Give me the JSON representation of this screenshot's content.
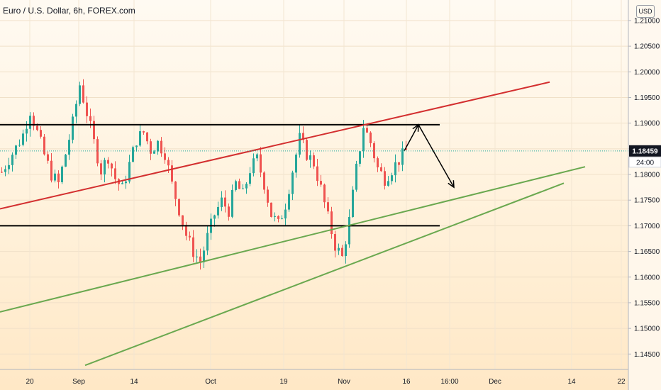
{
  "header": {
    "title": "Euro / U.S. Dollar, 6h, FOREX.com",
    "currency": "USD"
  },
  "colors": {
    "up": "#26a69a",
    "down": "#ef5350",
    "resistance_trend": "#d32f2f",
    "support_trend": "#6aa84f",
    "horizontal": "#000000",
    "price_badge": "#131722"
  },
  "chart_data": {
    "type": "candlestick",
    "symbol": "Euro / U.S. Dollar",
    "timeframe": "6h",
    "source": "FOREX.com",
    "ylim": [
      1.142,
      1.214
    ],
    "y_ticks": [
      "1.14500",
      "1.15000",
      "1.15500",
      "1.16000",
      "1.16500",
      "1.17000",
      "1.17500",
      "1.18000",
      "1.18500",
      "1.19000",
      "1.19500",
      "1.20000",
      "1.20500",
      "1.21000"
    ],
    "x_ticks": [
      "20",
      "Sep",
      "14",
      "Oct",
      "19",
      "Nov",
      "16",
      "16:00",
      "Dec",
      "14",
      "22"
    ],
    "last_price": "1.18459",
    "countdown": "24:00",
    "price_path": [
      {
        "t": 0,
        "p": 1.1805
      },
      {
        "t": 2,
        "p": 1.183
      },
      {
        "t": 4,
        "p": 1.1852
      },
      {
        "t": 6,
        "p": 1.1878
      },
      {
        "t": 8,
        "p": 1.1925
      },
      {
        "t": 10,
        "p": 1.1882
      },
      {
        "t": 12,
        "p": 1.1838
      },
      {
        "t": 14,
        "p": 1.18
      },
      {
        "t": 16,
        "p": 1.1782
      },
      {
        "t": 18,
        "p": 1.184
      },
      {
        "t": 20,
        "p": 1.19
      },
      {
        "t": 22,
        "p": 1.1975
      },
      {
        "t": 24,
        "p": 1.192
      },
      {
        "t": 26,
        "p": 1.1862
      },
      {
        "t": 28,
        "p": 1.1808
      },
      {
        "t": 30,
        "p": 1.1835
      },
      {
        "t": 32,
        "p": 1.1792
      },
      {
        "t": 34,
        "p": 1.1772
      },
      {
        "t": 36,
        "p": 1.182
      },
      {
        "t": 38,
        "p": 1.1868
      },
      {
        "t": 40,
        "p": 1.1882
      },
      {
        "t": 42,
        "p": 1.1848
      },
      {
        "t": 44,
        "p": 1.1862
      },
      {
        "t": 46,
        "p": 1.1842
      },
      {
        "t": 48,
        "p": 1.178
      },
      {
        "t": 50,
        "p": 1.1732
      },
      {
        "t": 52,
        "p": 1.1682
      },
      {
        "t": 54,
        "p": 1.165
      },
      {
        "t": 56,
        "p": 1.163
      },
      {
        "t": 58,
        "p": 1.1678
      },
      {
        "t": 60,
        "p": 1.1722
      },
      {
        "t": 62,
        "p": 1.1748
      },
      {
        "t": 64,
        "p": 1.173
      },
      {
        "t": 66,
        "p": 1.1782
      },
      {
        "t": 68,
        "p": 1.176
      },
      {
        "t": 70,
        "p": 1.181
      },
      {
        "t": 72,
        "p": 1.183
      },
      {
        "t": 74,
        "p": 1.1782
      },
      {
        "t": 76,
        "p": 1.1722
      },
      {
        "t": 78,
        "p": 1.1702
      },
      {
        "t": 80,
        "p": 1.1742
      },
      {
        "t": 82,
        "p": 1.1808
      },
      {
        "t": 84,
        "p": 1.187
      },
      {
        "t": 86,
        "p": 1.184
      },
      {
        "t": 88,
        "p": 1.1822
      },
      {
        "t": 90,
        "p": 1.1772
      },
      {
        "t": 92,
        "p": 1.1715
      },
      {
        "t": 94,
        "p": 1.1662
      },
      {
        "t": 96,
        "p": 1.1638
      },
      {
        "t": 98,
        "p": 1.171
      },
      {
        "t": 100,
        "p": 1.181
      },
      {
        "t": 102,
        "p": 1.1895
      },
      {
        "t": 104,
        "p": 1.1862
      },
      {
        "t": 106,
        "p": 1.1812
      },
      {
        "t": 108,
        "p": 1.1792
      },
      {
        "t": 110,
        "p": 1.181
      },
      {
        "t": 112,
        "p": 1.1828
      },
      {
        "t": 114,
        "p": 1.1846
      }
    ],
    "drawings": [
      {
        "name": "resistance-line",
        "type": "horizontal",
        "y": 1.1897,
        "t": [
          0,
          124
        ]
      },
      {
        "name": "support-line",
        "type": "horizontal",
        "y": 1.17,
        "t": [
          0,
          124
        ]
      },
      {
        "name": "red-rising-trendline",
        "type": "trend",
        "points": [
          [
            0,
            1.1733
          ],
          [
            155,
            1.198
          ]
        ]
      },
      {
        "name": "green-support-trendline-1",
        "type": "trend",
        "points": [
          [
            0,
            1.1532
          ],
          [
            165,
            1.1815
          ]
        ]
      },
      {
        "name": "green-support-trendline-2",
        "type": "trend",
        "points": [
          [
            24,
            1.1428
          ],
          [
            159,
            1.1783
          ]
        ]
      },
      {
        "name": "projection-up",
        "type": "arrow",
        "points": [
          [
            114,
            1.1846
          ],
          [
            118,
            1.1897
          ]
        ]
      },
      {
        "name": "projection-down",
        "type": "arrow",
        "points": [
          [
            118,
            1.1897
          ],
          [
            128,
            1.1775
          ]
        ]
      }
    ]
  }
}
